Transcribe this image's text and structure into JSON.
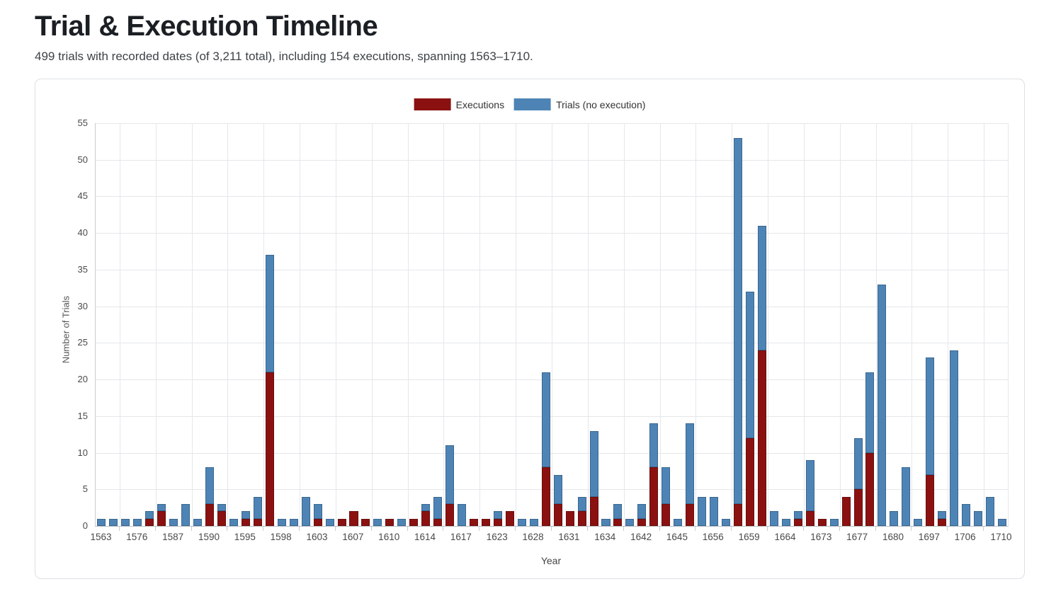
{
  "page": {
    "title": "Trial & Execution Timeline",
    "subtitle": "499 trials with recorded dates (of 3,211 total), including 154 executions, spanning 1563–1710."
  },
  "legend": [
    {
      "label": "Executions",
      "color": "#8b1111"
    },
    {
      "label": "Trials (no execution)",
      "color": "#4e84b5"
    }
  ],
  "chart_data": {
    "type": "bar",
    "stacked": true,
    "xlabel": "Year",
    "ylabel": "Number of Trials",
    "ylim": [
      0,
      55
    ],
    "yticks": [
      0,
      5,
      10,
      15,
      20,
      25,
      30,
      35,
      40,
      45,
      50,
      55
    ],
    "grid": true,
    "legend_position": "top",
    "x_tick_years": [
      "1563",
      "1576",
      "1587",
      "1590",
      "1595",
      "1598",
      "1603",
      "1607",
      "1610",
      "1614",
      "1617",
      "1623",
      "1628",
      "1631",
      "1634",
      "1642",
      "1645",
      "1656",
      "1659",
      "1664",
      "1673",
      "1677",
      "1680",
      "1697",
      "1706",
      "1710"
    ],
    "series": [
      {
        "name": "Executions",
        "color": "#8b1111"
      },
      {
        "name": "Trials (no execution)",
        "color": "#4e84b5"
      }
    ],
    "bars": [
      {
        "tick": "1563",
        "executions": 0,
        "no_execution": 1
      },
      {
        "tick": "",
        "executions": 0,
        "no_execution": 1
      },
      {
        "tick": "",
        "executions": 0,
        "no_execution": 1
      },
      {
        "tick": "1576",
        "executions": 0,
        "no_execution": 1
      },
      {
        "tick": "",
        "executions": 1,
        "no_execution": 1
      },
      {
        "tick": "",
        "executions": 2,
        "no_execution": 1
      },
      {
        "tick": "1587",
        "executions": 0,
        "no_execution": 1
      },
      {
        "tick": "",
        "executions": 0,
        "no_execution": 3
      },
      {
        "tick": "",
        "executions": 0,
        "no_execution": 1
      },
      {
        "tick": "1590",
        "executions": 3,
        "no_execution": 5
      },
      {
        "tick": "",
        "executions": 2,
        "no_execution": 1
      },
      {
        "tick": "",
        "executions": 0,
        "no_execution": 1
      },
      {
        "tick": "1595",
        "executions": 1,
        "no_execution": 1
      },
      {
        "tick": "",
        "executions": 1,
        "no_execution": 3
      },
      {
        "tick": "",
        "executions": 21,
        "no_execution": 16
      },
      {
        "tick": "1598",
        "executions": 0,
        "no_execution": 1
      },
      {
        "tick": "",
        "executions": 0,
        "no_execution": 1
      },
      {
        "tick": "",
        "executions": 0,
        "no_execution": 4
      },
      {
        "tick": "1603",
        "executions": 1,
        "no_execution": 2
      },
      {
        "tick": "",
        "executions": 0,
        "no_execution": 1
      },
      {
        "tick": "",
        "executions": 1,
        "no_execution": 0
      },
      {
        "tick": "1607",
        "executions": 2,
        "no_execution": 0
      },
      {
        "tick": "",
        "executions": 1,
        "no_execution": 0
      },
      {
        "tick": "",
        "executions": 0,
        "no_execution": 1
      },
      {
        "tick": "1610",
        "executions": 1,
        "no_execution": 0
      },
      {
        "tick": "",
        "executions": 0,
        "no_execution": 1
      },
      {
        "tick": "",
        "executions": 1,
        "no_execution": 0
      },
      {
        "tick": "1614",
        "executions": 2,
        "no_execution": 1
      },
      {
        "tick": "",
        "executions": 1,
        "no_execution": 3
      },
      {
        "tick": "",
        "executions": 3,
        "no_execution": 8
      },
      {
        "tick": "1617",
        "executions": 0,
        "no_execution": 3
      },
      {
        "tick": "",
        "executions": 1,
        "no_execution": 0
      },
      {
        "tick": "",
        "executions": 1,
        "no_execution": 0
      },
      {
        "tick": "1623",
        "executions": 1,
        "no_execution": 1
      },
      {
        "tick": "",
        "executions": 2,
        "no_execution": 0
      },
      {
        "tick": "",
        "executions": 0,
        "no_execution": 1
      },
      {
        "tick": "1628",
        "executions": 0,
        "no_execution": 1
      },
      {
        "tick": "",
        "executions": 8,
        "no_execution": 13
      },
      {
        "tick": "",
        "executions": 3,
        "no_execution": 4
      },
      {
        "tick": "1631",
        "executions": 2,
        "no_execution": 0
      },
      {
        "tick": "",
        "executions": 2,
        "no_execution": 2
      },
      {
        "tick": "",
        "executions": 4,
        "no_execution": 9
      },
      {
        "tick": "1634",
        "executions": 0,
        "no_execution": 1
      },
      {
        "tick": "",
        "executions": 1,
        "no_execution": 2
      },
      {
        "tick": "",
        "executions": 0,
        "no_execution": 1
      },
      {
        "tick": "1642",
        "executions": 1,
        "no_execution": 2
      },
      {
        "tick": "",
        "executions": 8,
        "no_execution": 6
      },
      {
        "tick": "",
        "executions": 3,
        "no_execution": 5
      },
      {
        "tick": "1645",
        "executions": 0,
        "no_execution": 1
      },
      {
        "tick": "",
        "executions": 3,
        "no_execution": 11
      },
      {
        "tick": "",
        "executions": 0,
        "no_execution": 4
      },
      {
        "tick": "1656",
        "executions": 0,
        "no_execution": 4
      },
      {
        "tick": "",
        "executions": 0,
        "no_execution": 1
      },
      {
        "tick": "",
        "executions": 3,
        "no_execution": 50
      },
      {
        "tick": "1659",
        "executions": 12,
        "no_execution": 20
      },
      {
        "tick": "",
        "executions": 24,
        "no_execution": 17
      },
      {
        "tick": "",
        "executions": 0,
        "no_execution": 2
      },
      {
        "tick": "1664",
        "executions": 0,
        "no_execution": 1
      },
      {
        "tick": "",
        "executions": 1,
        "no_execution": 1
      },
      {
        "tick": "",
        "executions": 2,
        "no_execution": 7
      },
      {
        "tick": "1673",
        "executions": 1,
        "no_execution": 0
      },
      {
        "tick": "",
        "executions": 0,
        "no_execution": 1
      },
      {
        "tick": "",
        "executions": 4,
        "no_execution": 0
      },
      {
        "tick": "1677",
        "executions": 5,
        "no_execution": 7
      },
      {
        "tick": "",
        "executions": 10,
        "no_execution": 11
      },
      {
        "tick": "",
        "executions": 0,
        "no_execution": 33
      },
      {
        "tick": "1680",
        "executions": 0,
        "no_execution": 2
      },
      {
        "tick": "",
        "executions": 0,
        "no_execution": 8
      },
      {
        "tick": "",
        "executions": 0,
        "no_execution": 1
      },
      {
        "tick": "1697",
        "executions": 7,
        "no_execution": 16
      },
      {
        "tick": "",
        "executions": 1,
        "no_execution": 1
      },
      {
        "tick": "",
        "executions": 0,
        "no_execution": 24
      },
      {
        "tick": "1706",
        "executions": 0,
        "no_execution": 3
      },
      {
        "tick": "",
        "executions": 0,
        "no_execution": 2
      },
      {
        "tick": "",
        "executions": 0,
        "no_execution": 4
      },
      {
        "tick": "1710",
        "executions": 0,
        "no_execution": 1
      }
    ]
  }
}
